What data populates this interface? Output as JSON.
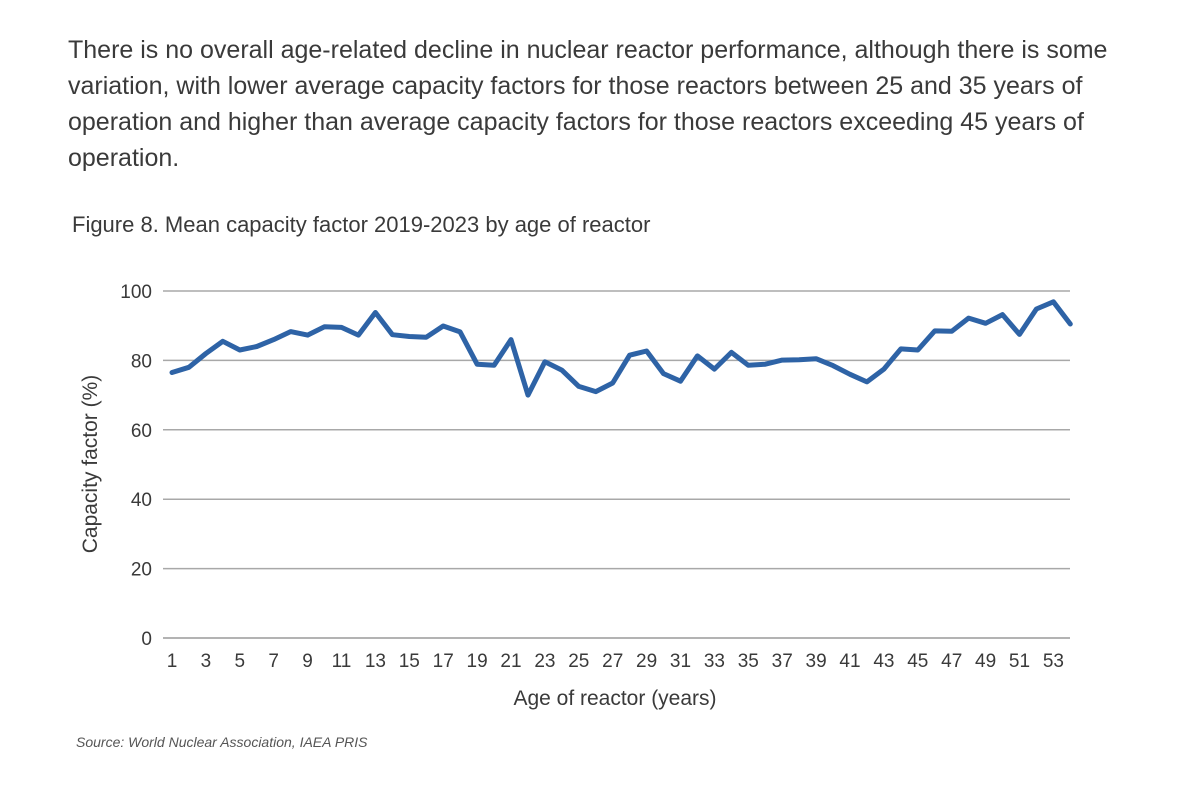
{
  "intro_text": "There is no overall age-related decline in nuclear reactor performance, although there is some variation, with lower average capacity factors for those reactors between 25 and 35 years of operation and higher than average capacity factors for those reactors exceeding 45 years of operation.",
  "figure_title": "Figure 8. Mean capacity factor 2019-2023 by age of reactor",
  "source": "Source: World Nuclear Association, IAEA PRIS",
  "chart_data": {
    "type": "line",
    "title": "Figure 8. Mean capacity factor 2019-2023 by age of reactor",
    "xlabel": "Age of reactor (years)",
    "ylabel": "Capacity factor (%)",
    "ylim": [
      0,
      100
    ],
    "yticks": [
      0,
      20,
      40,
      60,
      80,
      100
    ],
    "xtick_labels": [
      "1",
      "3",
      "5",
      "7",
      "9",
      "11",
      "13",
      "15",
      "17",
      "19",
      "21",
      "23",
      "25",
      "27",
      "29",
      "31",
      "33",
      "35",
      "37",
      "39",
      "41",
      "43",
      "45",
      "47",
      "49",
      "51",
      "53"
    ],
    "grid": true,
    "line_color": "#2e63a6",
    "series": [
      {
        "name": "Mean capacity factor",
        "x": [
          1,
          2,
          3,
          4,
          5,
          6,
          7,
          8,
          9,
          10,
          11,
          12,
          13,
          14,
          15,
          16,
          17,
          18,
          19,
          20,
          21,
          22,
          23,
          24,
          25,
          26,
          27,
          28,
          29,
          30,
          31,
          32,
          33,
          34,
          35,
          36,
          37,
          38,
          39,
          40,
          41,
          42,
          43,
          44,
          45,
          46,
          47,
          48,
          49,
          50,
          51,
          52,
          53,
          54
        ],
        "values": [
          76.5,
          78,
          82,
          85.5,
          83,
          84,
          86,
          88.3,
          87.3,
          89.7,
          89.5,
          87.3,
          93.8,
          87.4,
          86.9,
          86.7,
          89.9,
          88.2,
          78.9,
          78.6,
          86,
          70,
          79.6,
          77.2,
          72.5,
          71,
          73.5,
          81.5,
          82.7,
          76.2,
          74,
          81.3,
          77.5,
          82.3,
          78.6,
          78.9,
          80.1,
          80.2,
          80.5,
          78.5,
          76,
          73.8,
          77.5,
          83.3,
          83,
          88.5,
          88.4,
          92.2,
          90.7,
          93.2,
          87.5,
          94.8,
          96.9,
          90.5
        ]
      }
    ]
  }
}
